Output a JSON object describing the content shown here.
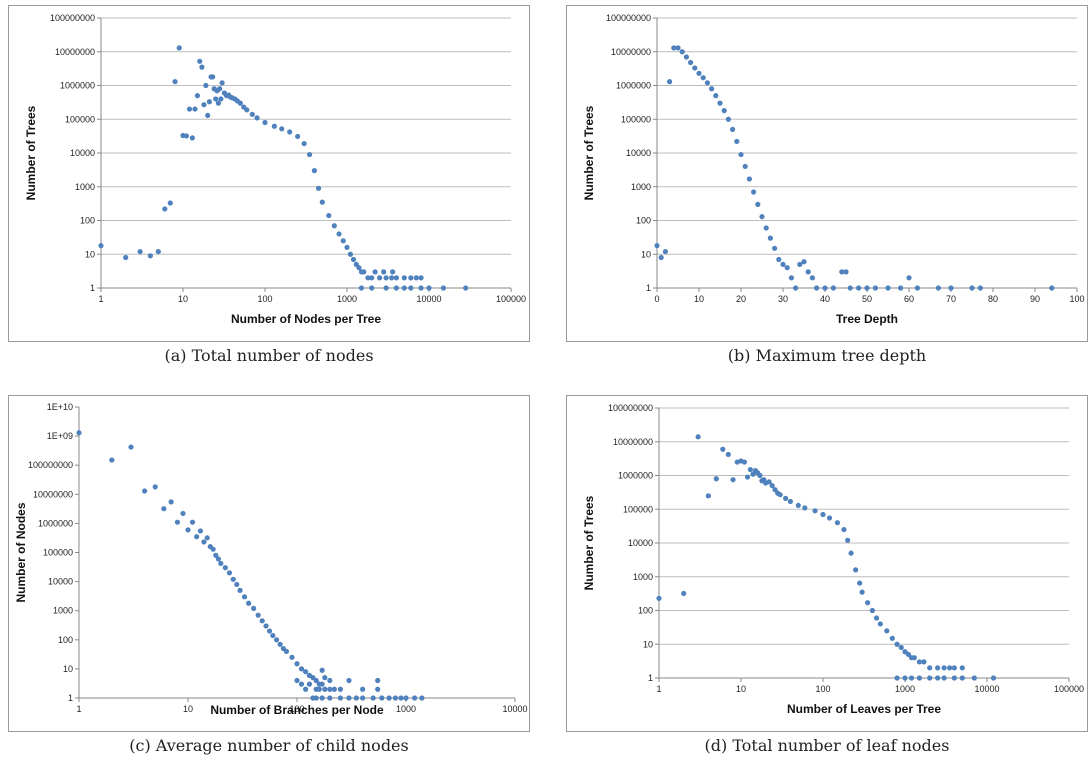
{
  "colors": {
    "marker": "#4f81bd",
    "grid": "#bdbdbd",
    "axis": "#888888"
  },
  "captions": {
    "a": "(a) Total number of nodes",
    "b": "(b) Maximum tree depth",
    "c": "(c) Average number of child nodes",
    "d": "(d) Total number of leaf nodes"
  },
  "chart_data": [
    {
      "id": "a",
      "type": "scatter",
      "xlabel": "Number of Nodes per Tree",
      "ylabel": "Number of Trees",
      "xscale": "log",
      "yscale": "log",
      "xlim": [
        1,
        100000
      ],
      "ylim": [
        1,
        100000000
      ],
      "xticks": [
        "1",
        "10",
        "100",
        "1000",
        "10000",
        "100000"
      ],
      "yticks": [
        "1",
        "10",
        "100",
        "1000",
        "10000",
        "100000",
        "1000000",
        "10000000",
        "100000000"
      ],
      "grid": "horizontal",
      "points": [
        [
          1,
          18
        ],
        [
          2,
          8
        ],
        [
          3,
          12
        ],
        [
          4,
          9
        ],
        [
          5,
          12
        ],
        [
          6,
          220
        ],
        [
          7,
          330
        ],
        [
          8,
          1300000
        ],
        [
          9,
          13000000
        ],
        [
          10,
          33000
        ],
        [
          11,
          32000
        ],
        [
          12,
          200000
        ],
        [
          13,
          28000
        ],
        [
          14,
          200000
        ],
        [
          15,
          500000
        ],
        [
          16,
          5200000
        ],
        [
          17,
          3500000
        ],
        [
          18,
          270000
        ],
        [
          19,
          1000000
        ],
        [
          20,
          130000
        ],
        [
          21,
          330000
        ],
        [
          22,
          1800000
        ],
        [
          23,
          1800000
        ],
        [
          24,
          800000
        ],
        [
          25,
          400000
        ],
        [
          26,
          700000
        ],
        [
          27,
          300000
        ],
        [
          28,
          800000
        ],
        [
          29,
          400000
        ],
        [
          30,
          1200000
        ],
        [
          32,
          600000
        ],
        [
          34,
          500000
        ],
        [
          36,
          520000
        ],
        [
          38,
          450000
        ],
        [
          40,
          430000
        ],
        [
          43,
          400000
        ],
        [
          46,
          350000
        ],
        [
          50,
          300000
        ],
        [
          55,
          230000
        ],
        [
          60,
          190000
        ],
        [
          70,
          140000
        ],
        [
          80,
          110000
        ],
        [
          100,
          80000
        ],
        [
          130,
          62000
        ],
        [
          160,
          52000
        ],
        [
          200,
          42000
        ],
        [
          250,
          31000
        ],
        [
          300,
          19000
        ],
        [
          350,
          9000
        ],
        [
          400,
          3000
        ],
        [
          450,
          900
        ],
        [
          500,
          350
        ],
        [
          600,
          140
        ],
        [
          700,
          70
        ],
        [
          800,
          40
        ],
        [
          900,
          25
        ],
        [
          1000,
          16
        ],
        [
          1100,
          10
        ],
        [
          1200,
          7
        ],
        [
          1300,
          5
        ],
        [
          1400,
          4
        ],
        [
          1500,
          3
        ],
        [
          1600,
          3
        ],
        [
          1800,
          2
        ],
        [
          2000,
          2
        ],
        [
          2500,
          2
        ],
        [
          3000,
          2
        ],
        [
          3500,
          2
        ],
        [
          4000,
          2
        ],
        [
          5000,
          2
        ],
        [
          6000,
          2
        ],
        [
          2200,
          3
        ],
        [
          2800,
          3
        ],
        [
          3600,
          3
        ],
        [
          7000,
          2
        ],
        [
          8000,
          2
        ],
        [
          1500,
          1
        ],
        [
          2000,
          1
        ],
        [
          3000,
          1
        ],
        [
          4000,
          1
        ],
        [
          5000,
          1
        ],
        [
          6000,
          1
        ],
        [
          8000,
          1
        ],
        [
          10000,
          1
        ],
        [
          15000,
          1
        ],
        [
          28000,
          1
        ]
      ]
    },
    {
      "id": "b",
      "type": "scatter",
      "xlabel": "Tree Depth",
      "ylabel": "Number of Trees",
      "xscale": "linear",
      "yscale": "log",
      "xlim": [
        0,
        100
      ],
      "ylim": [
        1,
        100000000
      ],
      "xticks": [
        "0",
        "10",
        "20",
        "30",
        "40",
        "50",
        "60",
        "70",
        "80",
        "90",
        "100"
      ],
      "yticks": [
        "1",
        "10",
        "100",
        "1000",
        "10000",
        "100000",
        "1000000",
        "10000000",
        "100000000"
      ],
      "grid": "horizontal",
      "points": [
        [
          0,
          18
        ],
        [
          1,
          8
        ],
        [
          2,
          12
        ],
        [
          3,
          1300000
        ],
        [
          4,
          13000000
        ],
        [
          5,
          13000000
        ],
        [
          6,
          10000000
        ],
        [
          7,
          7000000
        ],
        [
          8,
          4800000
        ],
        [
          9,
          3300000
        ],
        [
          10,
          2300000
        ],
        [
          11,
          1700000
        ],
        [
          12,
          1200000
        ],
        [
          13,
          800000
        ],
        [
          14,
          500000
        ],
        [
          15,
          300000
        ],
        [
          16,
          180000
        ],
        [
          17,
          100000
        ],
        [
          18,
          50000
        ],
        [
          19,
          22000
        ],
        [
          20,
          9000
        ],
        [
          21,
          4000
        ],
        [
          22,
          1700
        ],
        [
          23,
          700
        ],
        [
          24,
          300
        ],
        [
          25,
          130
        ],
        [
          26,
          60
        ],
        [
          27,
          30
        ],
        [
          28,
          15
        ],
        [
          29,
          7
        ],
        [
          30,
          5
        ],
        [
          31,
          4
        ],
        [
          32,
          2
        ],
        [
          33,
          1
        ],
        [
          34,
          5
        ],
        [
          35,
          6
        ],
        [
          36,
          3
        ],
        [
          37,
          2
        ],
        [
          38,
          1
        ],
        [
          40,
          1
        ],
        [
          42,
          1
        ],
        [
          44,
          3
        ],
        [
          45,
          3
        ],
        [
          46,
          1
        ],
        [
          48,
          1
        ],
        [
          50,
          1
        ],
        [
          52,
          1
        ],
        [
          55,
          1
        ],
        [
          58,
          1
        ],
        [
          60,
          2
        ],
        [
          62,
          1
        ],
        [
          67,
          1
        ],
        [
          70,
          1
        ],
        [
          75,
          1
        ],
        [
          77,
          1
        ],
        [
          94,
          1
        ]
      ]
    },
    {
      "id": "c",
      "type": "scatter",
      "xlabel": "Number of Branches per Node",
      "ylabel": "Number of Nodes",
      "xscale": "log",
      "yscale": "log",
      "xlim": [
        1,
        10000
      ],
      "ylim": [
        1,
        10000000000
      ],
      "xticks": [
        "1",
        "10",
        "100",
        "1000",
        "10000"
      ],
      "yticks": [
        "1",
        "10",
        "100",
        "1000",
        "10000",
        "100000",
        "1000000",
        "10000000",
        "100000000",
        "1E+09",
        "1E+10"
      ],
      "grid": "none",
      "points": [
        [
          1,
          1300000000
        ],
        [
          2,
          150000000
        ],
        [
          3,
          420000000
        ],
        [
          4,
          13000000
        ],
        [
          5,
          18000000
        ],
        [
          6,
          3200000
        ],
        [
          7,
          5500000
        ],
        [
          8,
          1100000
        ],
        [
          9,
          2200000
        ],
        [
          10,
          600000
        ],
        [
          11,
          1100000
        ],
        [
          12,
          350000
        ],
        [
          13,
          550000
        ],
        [
          14,
          230000
        ],
        [
          15,
          320000
        ],
        [
          16,
          160000
        ],
        [
          17,
          130000
        ],
        [
          18,
          80000
        ],
        [
          19,
          60000
        ],
        [
          20,
          42000
        ],
        [
          22,
          30000
        ],
        [
          24,
          20000
        ],
        [
          26,
          12000
        ],
        [
          28,
          8000
        ],
        [
          30,
          5000
        ],
        [
          33,
          3000
        ],
        [
          36,
          1800
        ],
        [
          40,
          1200
        ],
        [
          44,
          700
        ],
        [
          48,
          450
        ],
        [
          52,
          300
        ],
        [
          56,
          200
        ],
        [
          60,
          140
        ],
        [
          65,
          100
        ],
        [
          70,
          70
        ],
        [
          75,
          50
        ],
        [
          80,
          40
        ],
        [
          90,
          25
        ],
        [
          100,
          15
        ],
        [
          110,
          10
        ],
        [
          120,
          8
        ],
        [
          130,
          6
        ],
        [
          140,
          5
        ],
        [
          150,
          4
        ],
        [
          160,
          3
        ],
        [
          170,
          3
        ],
        [
          180,
          2
        ],
        [
          200,
          2
        ],
        [
          220,
          2
        ],
        [
          250,
          2
        ],
        [
          120,
          2
        ],
        [
          130,
          3
        ],
        [
          150,
          2
        ],
        [
          160,
          2
        ],
        [
          100,
          4
        ],
        [
          110,
          3
        ],
        [
          140,
          1
        ],
        [
          150,
          1
        ],
        [
          170,
          1
        ],
        [
          200,
          1
        ],
        [
          250,
          1
        ],
        [
          300,
          1
        ],
        [
          350,
          1
        ],
        [
          400,
          1
        ],
        [
          500,
          1
        ],
        [
          600,
          1
        ],
        [
          700,
          1
        ],
        [
          800,
          1
        ],
        [
          900,
          1
        ],
        [
          1000,
          1
        ],
        [
          1200,
          1
        ],
        [
          1400,
          1
        ],
        [
          170,
          9
        ],
        [
          180,
          5
        ],
        [
          200,
          4
        ],
        [
          300,
          4
        ],
        [
          550,
          4
        ],
        [
          550,
          2
        ],
        [
          400,
          2
        ]
      ]
    },
    {
      "id": "d",
      "type": "scatter",
      "xlabel": "Number of Leaves per Tree",
      "ylabel": "Number of Trees",
      "xscale": "log",
      "yscale": "log",
      "xlim": [
        1,
        100000
      ],
      "ylim": [
        1,
        100000000
      ],
      "xticks": [
        "1",
        "10",
        "100",
        "1000",
        "10000",
        "100000"
      ],
      "yticks": [
        "1",
        "10",
        "100",
        "1000",
        "10000",
        "100000",
        "1000000",
        "10000000",
        "100000000"
      ],
      "grid": "horizontal",
      "points": [
        [
          1,
          230
        ],
        [
          2,
          320
        ],
        [
          3,
          14000000
        ],
        [
          4,
          250000
        ],
        [
          5,
          800000
        ],
        [
          6,
          6000000
        ],
        [
          7,
          4200000
        ],
        [
          8,
          750000
        ],
        [
          9,
          2500000
        ],
        [
          10,
          2700000
        ],
        [
          11,
          2500000
        ],
        [
          12,
          900000
        ],
        [
          13,
          1500000
        ],
        [
          14,
          1100000
        ],
        [
          15,
          1400000
        ],
        [
          16,
          1200000
        ],
        [
          17,
          1000000
        ],
        [
          18,
          700000
        ],
        [
          19,
          750000
        ],
        [
          20,
          600000
        ],
        [
          22,
          650000
        ],
        [
          24,
          500000
        ],
        [
          26,
          380000
        ],
        [
          28,
          300000
        ],
        [
          30,
          270000
        ],
        [
          35,
          210000
        ],
        [
          40,
          170000
        ],
        [
          50,
          130000
        ],
        [
          60,
          110000
        ],
        [
          80,
          90000
        ],
        [
          100,
          70000
        ],
        [
          120,
          55000
        ],
        [
          150,
          40000
        ],
        [
          180,
          25000
        ],
        [
          200,
          12000
        ],
        [
          220,
          5000
        ],
        [
          250,
          1600
        ],
        [
          280,
          650
        ],
        [
          300,
          350
        ],
        [
          350,
          170
        ],
        [
          400,
          100
        ],
        [
          450,
          60
        ],
        [
          500,
          40
        ],
        [
          600,
          25
        ],
        [
          700,
          15
        ],
        [
          800,
          10
        ],
        [
          900,
          8
        ],
        [
          1000,
          6
        ],
        [
          1100,
          5
        ],
        [
          1200,
          4
        ],
        [
          1300,
          4
        ],
        [
          1500,
          3
        ],
        [
          1700,
          3
        ],
        [
          2000,
          2
        ],
        [
          2500,
          2
        ],
        [
          3000,
          2
        ],
        [
          3500,
          2
        ],
        [
          4000,
          2
        ],
        [
          5000,
          2
        ],
        [
          800,
          1
        ],
        [
          1000,
          1
        ],
        [
          1200,
          1
        ],
        [
          1500,
          1
        ],
        [
          2000,
          1
        ],
        [
          2500,
          1
        ],
        [
          3000,
          1
        ],
        [
          4000,
          1
        ],
        [
          5000,
          1
        ],
        [
          7000,
          1
        ],
        [
          12000,
          1
        ]
      ]
    }
  ]
}
